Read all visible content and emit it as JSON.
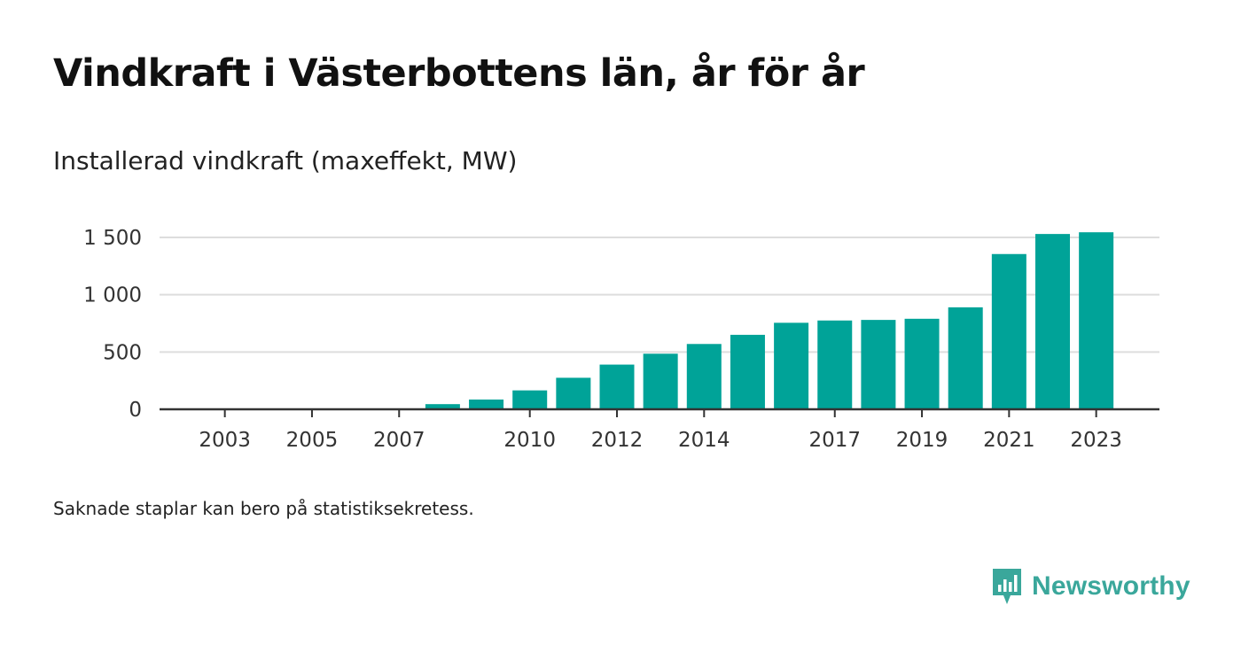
{
  "title": "Vindkraft i Västerbottens län, år för år",
  "subtitle": "Installerad vindkraft (maxeffekt, MW)",
  "footnote": "Saknade staplar kan bero på statistiksekretess.",
  "brand": {
    "name": "Newsworthy",
    "icon": "newsworthy-logo-icon",
    "color": "#3aa79b"
  },
  "colors": {
    "bar": "#00a398",
    "grid": "#dddddd",
    "axis": "#333333",
    "text": "#333333"
  },
  "chart_data": {
    "type": "bar",
    "categories": [
      "2002",
      "2003",
      "2004",
      "2005",
      "2006",
      "2007",
      "2008",
      "2009",
      "2010",
      "2011",
      "2012",
      "2013",
      "2014",
      "2015",
      "2016",
      "2017",
      "2018",
      "2019",
      "2020",
      "2021",
      "2022",
      "2023"
    ],
    "values": [
      1,
      2,
      2,
      3,
      3,
      4,
      45,
      85,
      165,
      275,
      390,
      485,
      570,
      650,
      755,
      775,
      780,
      790,
      890,
      1355,
      1530,
      1545
    ],
    "tick_labels_x": [
      "2003",
      "2005",
      "2007",
      "2010",
      "2012",
      "2014",
      "2017",
      "2019",
      "2021",
      "2023"
    ],
    "yticks": [
      0,
      500,
      1000,
      1500
    ],
    "ytick_labels": [
      "0",
      "500",
      "1 000",
      "1 500"
    ],
    "ylim": [
      0,
      1600
    ],
    "xlabel": "",
    "ylabel": "",
    "grid": true,
    "legend": "none"
  }
}
